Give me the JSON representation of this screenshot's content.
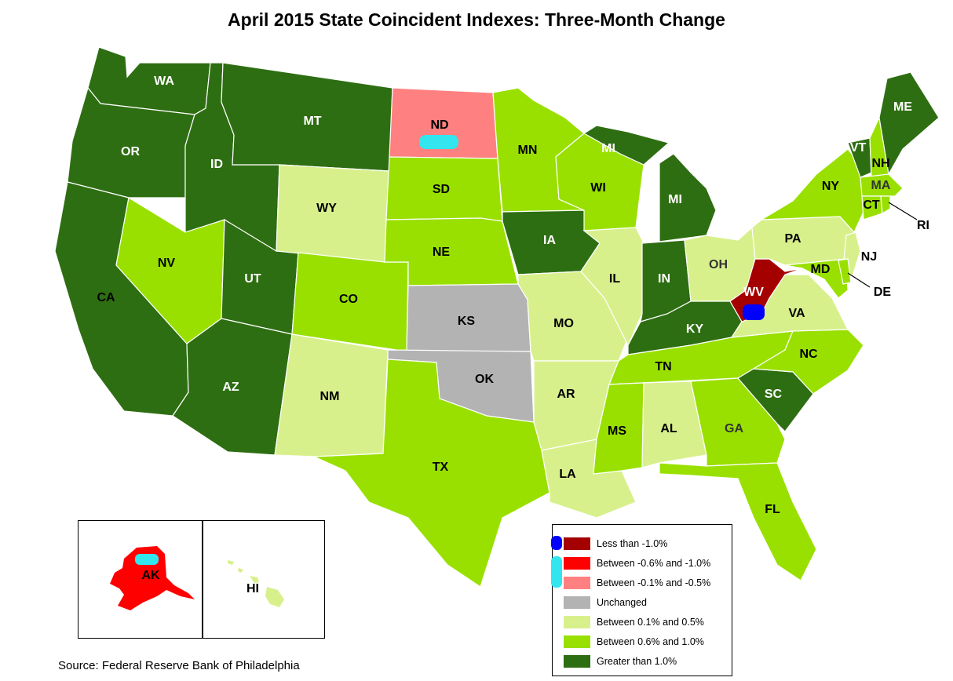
{
  "title": "April 2015 State Coincident Indexes: Three-Month Change",
  "source": "Source: Federal Reserve Bank of Philadelphia",
  "colors": {
    "lt_neg1": "#a50000",
    "neg06_10": "#ff0000",
    "neg01_05": "#ff8080",
    "unchanged": "#b3b3b3",
    "pos01_05": "#d8f08c",
    "pos06_10": "#99e000",
    "gt1": "#2e6e12"
  },
  "legend": [
    {
      "label": "Less than -1.0%",
      "color_key": "lt_neg1"
    },
    {
      "label": "Between -0.6% and -1.0%",
      "color_key": "neg06_10"
    },
    {
      "label": "Between -0.1% and -0.5%",
      "color_key": "neg01_05"
    },
    {
      "label": "Unchanged",
      "color_key": "unchanged"
    },
    {
      "label": "Between 0.1% and 0.5%",
      "color_key": "pos01_05"
    },
    {
      "label": "Between 0.6% and 1.0%",
      "color_key": "pos06_10"
    },
    {
      "label": "Greater than 1.0%",
      "color_key": "gt1"
    }
  ],
  "states": {
    "WA": "gt1",
    "OR": "gt1",
    "CA": "gt1",
    "ID": "gt1",
    "MT": "gt1",
    "UT": "gt1",
    "AZ": "gt1",
    "NV": "pos06_10",
    "WY": "pos01_05",
    "CO": "pos06_10",
    "NM": "pos01_05",
    "ND": "neg01_05",
    "SD": "pos06_10",
    "NE": "pos06_10",
    "KS": "unchanged",
    "OK": "unchanged",
    "TX": "pos06_10",
    "MN": "pos06_10",
    "IA": "gt1",
    "MO": "pos01_05",
    "AR": "pos01_05",
    "LA": "pos01_05",
    "WI": "pos06_10",
    "IL": "pos01_05",
    "MI": "gt1",
    "IN": "gt1",
    "OH": "pos01_05",
    "KY": "gt1",
    "TN": "pos06_10",
    "MS": "pos06_10",
    "AL": "pos01_05",
    "GA": "pos06_10",
    "FL": "pos06_10",
    "SC": "gt1",
    "NC": "pos06_10",
    "VA": "pos01_05",
    "WV": "lt_neg1",
    "PA": "pos01_05",
    "NY": "pos06_10",
    "NJ": "pos01_05",
    "DE": "pos06_10",
    "MD": "pos06_10",
    "VT": "gt1",
    "NH": "pos06_10",
    "ME": "gt1",
    "MA": "pos06_10",
    "CT": "pos06_10",
    "RI": "pos06_10",
    "AK": "neg06_10",
    "HI": "pos01_05"
  },
  "labels": {
    "WA": "WA",
    "OR": "OR",
    "CA": "CA",
    "ID": "ID",
    "MT": "MT",
    "UT": "UT",
    "AZ": "AZ",
    "NV": "NV",
    "WY": "WY",
    "CO": "CO",
    "NM": "NM",
    "ND": "ND",
    "SD": "SD",
    "NE": "NE",
    "KS": "KS",
    "OK": "OK",
    "TX": "TX",
    "MN": "MN",
    "IA": "IA",
    "MO": "MO",
    "AR": "AR",
    "LA": "LA",
    "WI": "WI",
    "IL": "IL",
    "MI_UP": "MI",
    "MI_LP": "MI",
    "IN": "IN",
    "OH": "OH",
    "KY": "KY",
    "TN": "TN",
    "MS": "MS",
    "AL": "AL",
    "GA": "GA",
    "FL": "FL",
    "SC": "SC",
    "NC": "NC",
    "VA": "VA",
    "WV": "WV",
    "PA": "PA",
    "NY": "NY",
    "NJ": "NJ",
    "DE": "DE",
    "MD": "MD",
    "VT": "VT",
    "NH": "NH",
    "ME": "ME",
    "MA": "MA",
    "CT": "CT",
    "RI": "RI",
    "AK": "AK",
    "HI": "HI"
  }
}
